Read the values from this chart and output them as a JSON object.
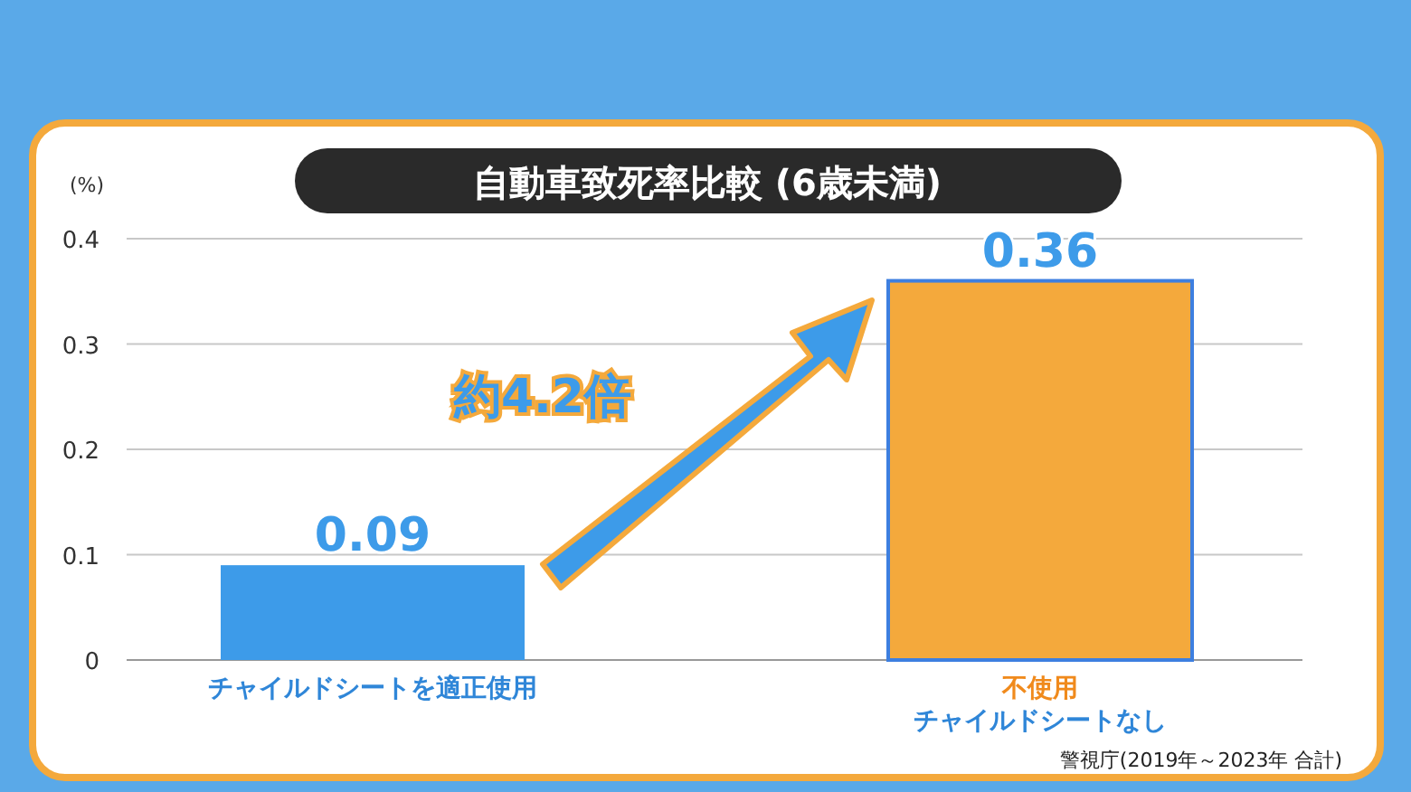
{
  "chart_data": {
    "type": "bar",
    "title": "自動車致死率比較 (6歳未満)",
    "ylabel": "(%)",
    "categories": [
      "チャイルドシートを適正使用",
      "チャイルドシートなし"
    ],
    "values": [
      0.09,
      0.36
    ],
    "colors": [
      "#3d9be9",
      "#f4a93c"
    ],
    "ylim": [
      0,
      0.4
    ],
    "yticks": [
      0,
      0.1,
      0.2,
      0.3,
      0.4
    ],
    "grid": "y",
    "data_labels": true,
    "annotations": [
      "約4.2倍",
      "警視庁(2019年～2023年 合計)",
      "不使用"
    ]
  }
}
